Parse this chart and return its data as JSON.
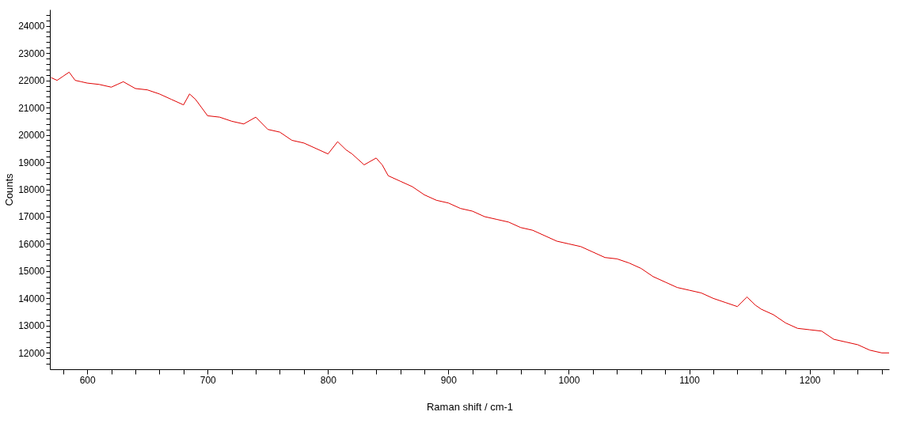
{
  "chart_data": {
    "type": "line",
    "xlabel": "Raman shift / cm-1",
    "ylabel": "Counts",
    "x": [
      570,
      575,
      580,
      585,
      590,
      595,
      600,
      610,
      620,
      625,
      630,
      640,
      650,
      660,
      670,
      680,
      685,
      690,
      700,
      710,
      720,
      730,
      740,
      750,
      760,
      770,
      780,
      790,
      800,
      808,
      815,
      820,
      830,
      840,
      845,
      850,
      860,
      870,
      880,
      890,
      900,
      910,
      920,
      930,
      940,
      950,
      960,
      970,
      980,
      990,
      1000,
      1010,
      1020,
      1030,
      1040,
      1050,
      1060,
      1070,
      1080,
      1090,
      1100,
      1110,
      1120,
      1130,
      1140,
      1148,
      1155,
      1160,
      1170,
      1180,
      1190,
      1200,
      1210,
      1220,
      1230,
      1240,
      1250,
      1260,
      1266
    ],
    "series": [
      {
        "color": "#e00000",
        "values": [
          22100,
          22000,
          22150,
          22300,
          22000,
          21950,
          21900,
          21850,
          21750,
          21850,
          21950,
          21700,
          21650,
          21500,
          21300,
          21100,
          21500,
          21300,
          20700,
          20650,
          20500,
          20400,
          20650,
          20200,
          20100,
          19800,
          19700,
          19500,
          19300,
          19750,
          19450,
          19300,
          18900,
          19150,
          18900,
          18500,
          18300,
          18100,
          17800,
          17600,
          17500,
          17300,
          17200,
          17000,
          16900,
          16800,
          16600,
          16500,
          16300,
          16100,
          16000,
          15900,
          15700,
          15500,
          15450,
          15300,
          15100,
          14800,
          14600,
          14400,
          14300,
          14200,
          14000,
          13850,
          13700,
          14050,
          13750,
          13600,
          13400,
          13100,
          12900,
          12850,
          12800,
          12500,
          12400,
          12300,
          12100,
          12000,
          12000
        ]
      }
    ],
    "xlim": [
      569,
      1266
    ],
    "ylim": [
      11400,
      24600
    ],
    "xticks": [
      {
        "value": 580,
        "label": null
      },
      600,
      {
        "value": 620,
        "label": null
      },
      {
        "value": 640,
        "label": null
      },
      {
        "value": 660,
        "label": null
      },
      {
        "value": 680,
        "label": null
      },
      700,
      {
        "value": 720,
        "label": null
      },
      {
        "value": 740,
        "label": null
      },
      {
        "value": 760,
        "label": null
      },
      {
        "value": 780,
        "label": null
      },
      800,
      {
        "value": 820,
        "label": null
      },
      {
        "value": 840,
        "label": null
      },
      {
        "value": 860,
        "label": null
      },
      {
        "value": 880,
        "label": null
      },
      900,
      {
        "value": 920,
        "label": null
      },
      {
        "value": 940,
        "label": null
      },
      {
        "value": 960,
        "label": null
      },
      {
        "value": 980,
        "label": null
      },
      1000,
      {
        "value": 1020,
        "label": null
      },
      {
        "value": 1040,
        "label": null
      },
      {
        "value": 1060,
        "label": null
      },
      {
        "value": 1080,
        "label": null
      },
      1100,
      {
        "value": 1120,
        "label": null
      },
      {
        "value": 1140,
        "label": null
      },
      {
        "value": 1160,
        "label": null
      },
      {
        "value": 1180,
        "label": null
      },
      1200,
      {
        "value": 1220,
        "label": null
      },
      {
        "value": 1240,
        "label": null
      },
      {
        "value": 1260,
        "label": null
      }
    ],
    "yticks": [
      {
        "value": 11600,
        "label": null
      },
      {
        "value": 11800,
        "label": null
      },
      12000,
      {
        "value": 12200,
        "label": null
      },
      {
        "value": 12400,
        "label": null
      },
      {
        "value": 12600,
        "label": null
      },
      {
        "value": 12800,
        "label": null
      },
      13000,
      {
        "value": 13200,
        "label": null
      },
      {
        "value": 13400,
        "label": null
      },
      {
        "value": 13600,
        "label": null
      },
      {
        "value": 13800,
        "label": null
      },
      14000,
      {
        "value": 14200,
        "label": null
      },
      {
        "value": 14400,
        "label": null
      },
      {
        "value": 14600,
        "label": null
      },
      {
        "value": 14800,
        "label": null
      },
      15000,
      {
        "value": 15200,
        "label": null
      },
      {
        "value": 15400,
        "label": null
      },
      {
        "value": 15600,
        "label": null
      },
      {
        "value": 15800,
        "label": null
      },
      16000,
      {
        "value": 16200,
        "label": null
      },
      {
        "value": 16400,
        "label": null
      },
      {
        "value": 16600,
        "label": null
      },
      {
        "value": 16800,
        "label": null
      },
      17000,
      {
        "value": 17200,
        "label": null
      },
      {
        "value": 17400,
        "label": null
      },
      {
        "value": 17600,
        "label": null
      },
      {
        "value": 17800,
        "label": null
      },
      18000,
      {
        "value": 18200,
        "label": null
      },
      {
        "value": 18400,
        "label": null
      },
      {
        "value": 18600,
        "label": null
      },
      {
        "value": 18800,
        "label": null
      },
      19000,
      {
        "value": 19200,
        "label": null
      },
      {
        "value": 19400,
        "label": null
      },
      {
        "value": 19600,
        "label": null
      },
      {
        "value": 19800,
        "label": null
      },
      20000,
      {
        "value": 20200,
        "label": null
      },
      {
        "value": 20400,
        "label": null
      },
      {
        "value": 20600,
        "label": null
      },
      {
        "value": 20800,
        "label": null
      },
      21000,
      {
        "value": 21200,
        "label": null
      },
      {
        "value": 21400,
        "label": null
      },
      {
        "value": 21600,
        "label": null
      },
      {
        "value": 21800,
        "label": null
      },
      22000,
      {
        "value": 22200,
        "label": null
      },
      {
        "value": 22400,
        "label": null
      },
      {
        "value": 22600,
        "label": null
      },
      {
        "value": 22800,
        "label": null
      },
      23000,
      {
        "value": 23200,
        "label": null
      },
      {
        "value": 23400,
        "label": null
      },
      {
        "value": 23600,
        "label": null
      },
      {
        "value": 23800,
        "label": null
      },
      24000,
      {
        "value": 24200,
        "label": null
      },
      {
        "value": 24400,
        "label": null
      }
    ],
    "grid": false,
    "marker": "none",
    "line_style": "solid"
  }
}
